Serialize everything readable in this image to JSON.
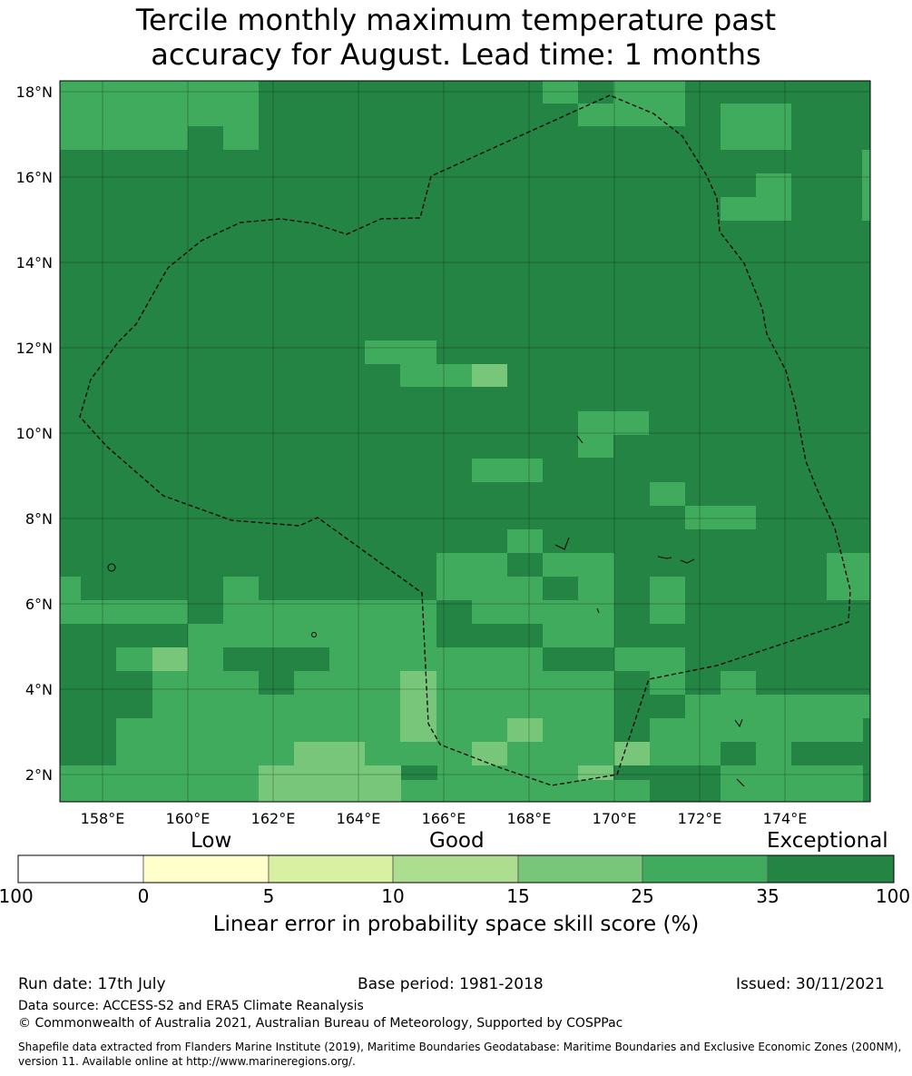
{
  "title_line1": "Tercile monthly maximum temperature past",
  "title_line2": "accuracy for August. Lead time: 1 months",
  "map": {
    "lon_ticks": [
      "158°E",
      "160°E",
      "162°E",
      "164°E",
      "166°E",
      "168°E",
      "170°E",
      "172°E",
      "174°E"
    ],
    "lat_ticks": [
      "18°N",
      "16°N",
      "14°N",
      "12°N",
      "10°N",
      "8°N",
      "6°N",
      "4°N",
      "2°N"
    ],
    "boundary": "Exclusive Economic Zone (200NM) dashed outline"
  },
  "colorbar": {
    "category_labels": [
      "Low",
      "Good",
      "Exceptional"
    ],
    "tick_labels": [
      "-100",
      "0",
      "5",
      "10",
      "15",
      "25",
      "35",
      "100"
    ],
    "colors": [
      "#ffffff",
      "#ffffcc",
      "#d9f0a3",
      "#addd8e",
      "#78c679",
      "#41ab5d",
      "#238443"
    ],
    "xlabel": "Linear error in probability space skill score (%)"
  },
  "footer": {
    "run_date": "Run date: 17th July",
    "base_period": "Base period: 1981-2018",
    "issued": "Issued: 30/11/2021",
    "data_source": "Data source: ACCESS-S2 and ERA5 Climate Reanalysis",
    "copyright": "© Commonwealth of Australia 2021, Australian Bureau of Meteorology, Supported by COSPPac",
    "shapefile_line1": "Shapefile data extracted from Flanders Marine Institute (2019), Maritime Boundaries Geodatabase: Maritime Boundaries and Exclusive Economic Zones (200NM),",
    "shapefile_line2": "version 11. Available online at http://www.marineregions.org/."
  }
}
